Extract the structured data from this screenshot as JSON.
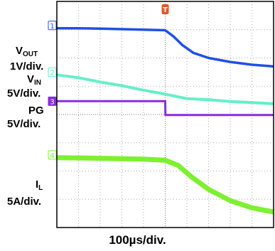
{
  "chart_data": {
    "type": "line",
    "x_label": "100µs/div.",
    "x_divisions": 10,
    "y_divisions": 8,
    "grid": "dotted",
    "markers": {
      "trigger": "T"
    },
    "series": [
      {
        "key": "vout",
        "name": "VOUT",
        "color": "#1f4fe8",
        "ch": "1",
        "scale": "1V/div.",
        "points": [
          [
            0,
            7.05
          ],
          [
            1,
            7.05
          ],
          [
            2,
            7.04
          ],
          [
            3,
            7.02
          ],
          [
            4,
            7.0
          ],
          [
            5,
            6.98
          ],
          [
            5.4,
            6.75
          ],
          [
            5.8,
            6.45
          ],
          [
            6.3,
            6.18
          ],
          [
            7,
            6.0
          ],
          [
            8,
            5.86
          ],
          [
            9,
            5.76
          ],
          [
            10,
            5.7
          ]
        ]
      },
      {
        "key": "vin",
        "name": "VIN",
        "color": "#66eecc",
        "ch": "2",
        "scale": "5V/div.",
        "points": [
          [
            0,
            5.4
          ],
          [
            1,
            5.3
          ],
          [
            2,
            5.15
          ],
          [
            3,
            5.02
          ],
          [
            4,
            4.86
          ],
          [
            5,
            4.72
          ],
          [
            6,
            4.56
          ],
          [
            7,
            4.52
          ],
          [
            8,
            4.46
          ],
          [
            9,
            4.42
          ],
          [
            10,
            4.38
          ]
        ]
      },
      {
        "key": "pg",
        "name": "PG",
        "color": "#8a2be2",
        "ch": "3",
        "scale": "5V/div.",
        "points": [
          [
            0,
            4.47
          ],
          [
            4.99,
            4.47
          ],
          [
            5.0,
            4.47
          ],
          [
            5.01,
            3.98
          ],
          [
            10,
            3.98
          ]
        ]
      },
      {
        "key": "il",
        "name": "IL",
        "color": "#7ef030",
        "ch": "4",
        "scale": "5A/div.",
        "points": [
          [
            0,
            2.47
          ],
          [
            2,
            2.45
          ],
          [
            4,
            2.42
          ],
          [
            5,
            2.38
          ],
          [
            5.6,
            2.2
          ],
          [
            6.2,
            1.8
          ],
          [
            7,
            1.35
          ],
          [
            8,
            0.95
          ],
          [
            9,
            0.7
          ],
          [
            10,
            0.55
          ]
        ]
      }
    ]
  },
  "labels": {
    "vout_scale": "1V/div.",
    "vin_scale": "5V/div.",
    "pg_scale": "5V/div.",
    "il_scale": "5A/div."
  }
}
